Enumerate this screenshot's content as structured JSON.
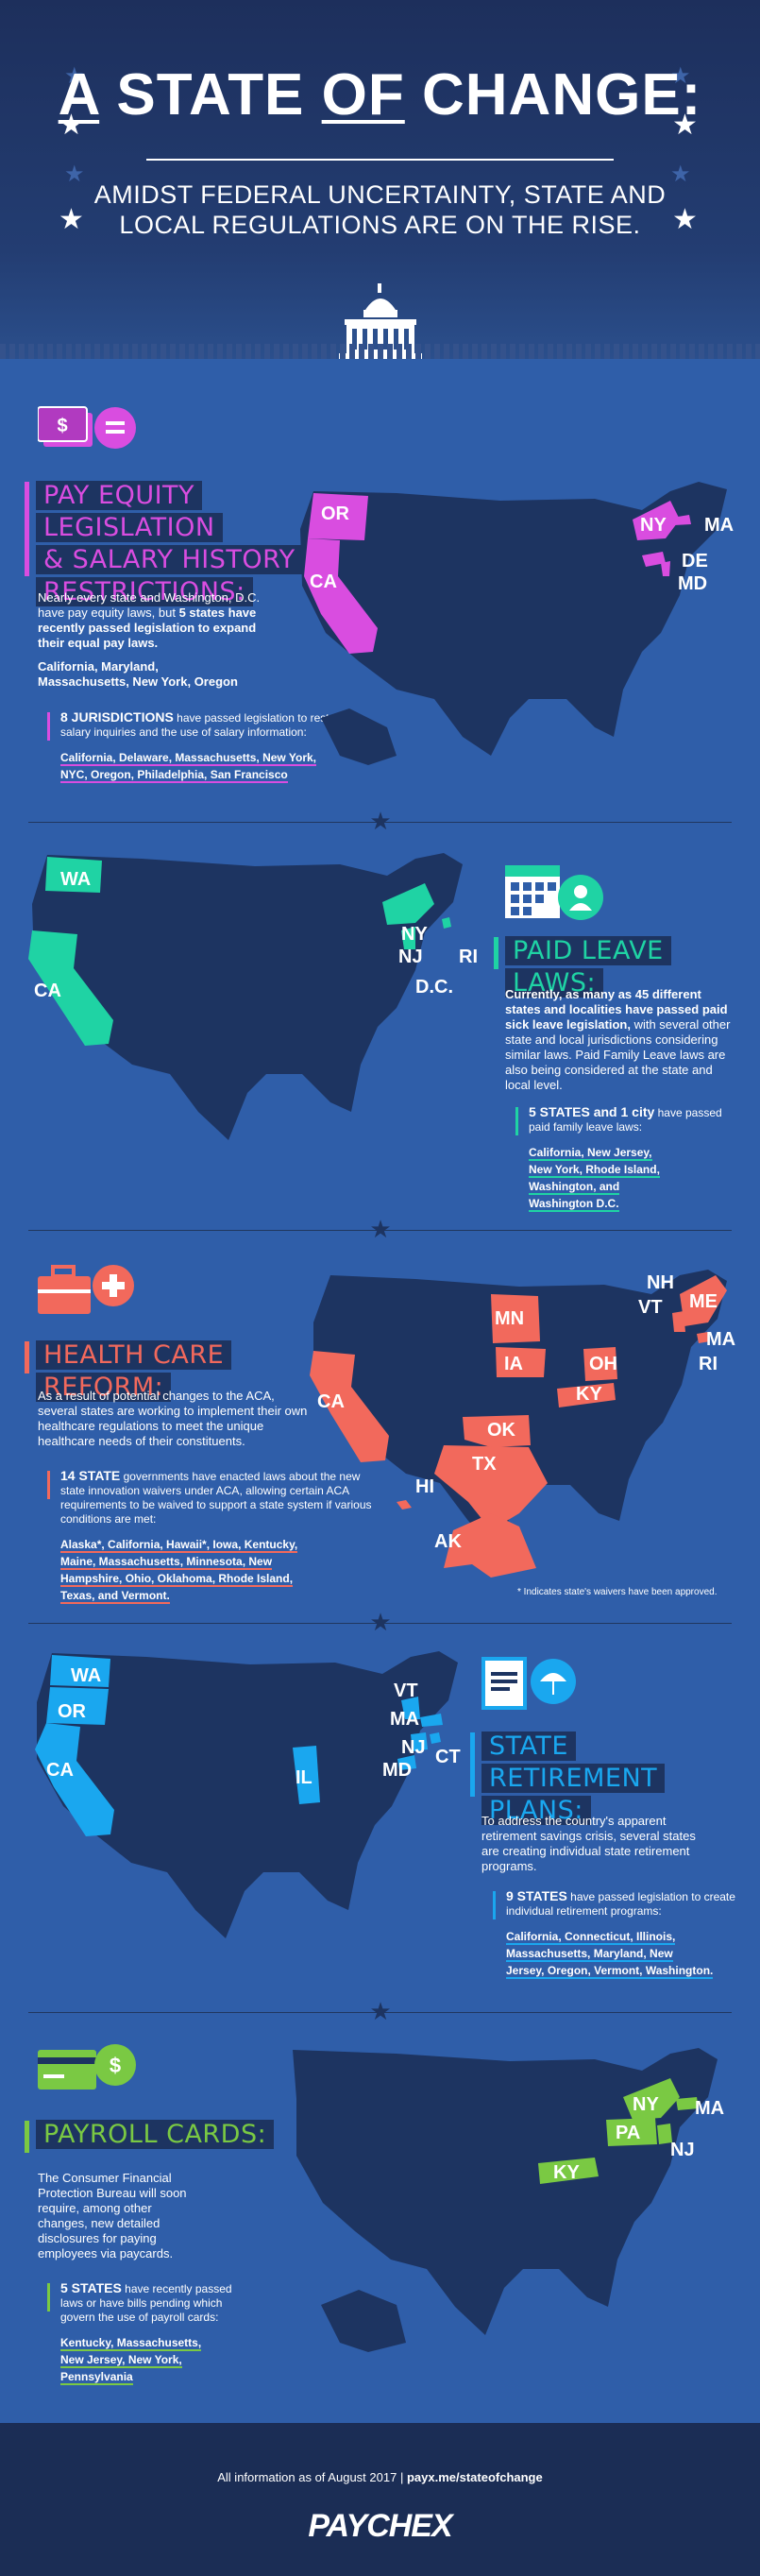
{
  "hero": {
    "title_a": "A",
    "title_state": "STATE",
    "title_of": "OF",
    "title_change": "CHANGE:",
    "subtitle_1": "AMIDST FEDERAL UNCERTAINTY, STATE AND",
    "subtitle_2": "LOCAL REGULATIONS ARE ON THE RISE."
  },
  "sections": {
    "pay_equity": {
      "title_1": "PAY EQUITY LEGISLATION",
      "title_2": "& SALARY HISTORY",
      "title_3": "RESTRICTIONS:",
      "body_1": "Nearly every state and Washington, D.C.",
      "body_2": "have pay equity laws, but ",
      "body_bold": "5 states have recently passed legislation to expand their equal pay laws.",
      "states_line_1": "California, Maryland,",
      "states_line_2": "Massachusetts, New York, Oregon",
      "stat_head": "8 JURISDICTIONS",
      "stat_text": " have passed legislation to restrict salary inquiries and the use of salary information:",
      "stat_list_1": "California, Delaware, Massachusetts, New York,",
      "stat_list_2": "NYC, Oregon, Philadelphia, San Francisco",
      "accent": "#d94de0",
      "map_labels": [
        "OR",
        "CA",
        "NY",
        "MA",
        "DE",
        "MD"
      ]
    },
    "paid_leave": {
      "title": "PAID LEAVE LAWS:",
      "body_bold": "Currently, as many as 45 different states and localities have passed paid sick leave legislation,",
      "body_rest": " with several other state and local jurisdictions considering similar laws. Paid Family Leave laws are also being considered at the state and local level.",
      "stat_head": "5 STATES and 1 city",
      "stat_text": " have passed paid family leave laws:",
      "stat_list_1": "California, New Jersey,",
      "stat_list_2": "New York, Rhode Island,",
      "stat_list_3": "Washington, and",
      "stat_list_4": "Washington D.C.",
      "accent": "#1fd3a4",
      "map_labels": [
        "WA",
        "CA",
        "NY",
        "NJ",
        "RI",
        "D.C."
      ]
    },
    "health_care": {
      "title": "HEALTH CARE REFORM:",
      "body": "As a result of potential changes to the ACA, several states are working to implement their own healthcare regulations to meet the unique healthcare needs of their constituents.",
      "stat_head": "14 STATE",
      "stat_text": " governments have enacted laws about the new state innovation waivers under ACA, allowing certain ACA requirements to be waived to support a state system if various conditions are met:",
      "stat_list_1": "Alaska*, California, Hawaii*, Iowa, Kentucky,",
      "stat_list_2": "Maine, Massachusetts, Minnesota, New",
      "stat_list_3": "Hampshire, Ohio, Oklahoma, Rhode Island,",
      "stat_list_4": "Texas, and Vermont.",
      "footnote": "* Indicates state's waivers have been approved.",
      "accent": "#f2695c",
      "map_labels": [
        "NH",
        "VT",
        "ME",
        "MA",
        "RI",
        "MN",
        "IA",
        "OH",
        "KY",
        "CA",
        "OK",
        "TX",
        "HI",
        "AK"
      ]
    },
    "retirement": {
      "title_1": "STATE",
      "title_2": "RETIREMENT PLANS:",
      "body": "To address the country's apparent retirement savings crisis, several states are creating individual state retirement programs.",
      "stat_head": "9 STATES",
      "stat_text": " have passed legislation to create individual retirement programs:",
      "stat_list_1": "California, Connecticut, Illinois,",
      "stat_list_2": "Massachusetts, Maryland, New",
      "stat_list_3": "Jersey, Oregon, Vermont, Washington.",
      "accent": "#1aa7ef",
      "map_labels": [
        "WA",
        "OR",
        "CA",
        "VT",
        "MA",
        "NJ",
        "CT",
        "MD",
        "IL"
      ]
    },
    "payroll": {
      "title": "PAYROLL CARDS:",
      "body": "The Consumer Financial Protection Bureau will soon require, among other changes, new detailed disclosures for paying employees via paycards.",
      "stat_head": "5 STATES",
      "stat_text": " have recently passed laws or have bills pending which govern the use of payroll cards:",
      "stat_list_1": "Kentucky, Massachusetts,",
      "stat_list_2": "New Jersey, New York,",
      "stat_list_3": "Pennsylvania",
      "accent": "#7ac943",
      "map_labels": [
        "NY",
        "MA",
        "PA",
        "NJ",
        "KY"
      ]
    }
  },
  "footer": {
    "info": "All information as of August 2017",
    "sep": "|",
    "url": "payx.me/stateofchange",
    "logo": "PAYCHEX"
  }
}
